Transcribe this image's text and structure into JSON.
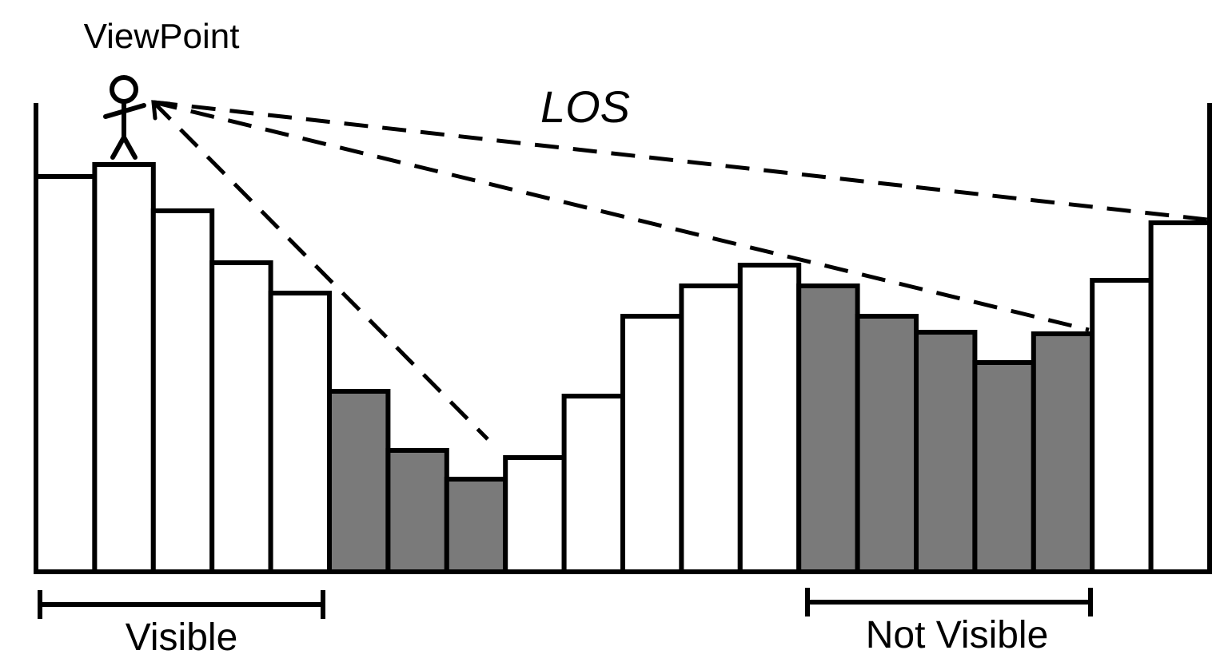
{
  "labels": {
    "viewpoint": "ViewPoint",
    "los": "LOS",
    "visible": "Visible",
    "not_visible": "Not Visible"
  },
  "terrain": {
    "column_count": 20,
    "heights": [
      495,
      510,
      452,
      387,
      349,
      226,
      152,
      116,
      143,
      220,
      320,
      358,
      384,
      358,
      320,
      300,
      262,
      298,
      365,
      437
    ],
    "visible": [
      true,
      true,
      true,
      true,
      true,
      false,
      false,
      false,
      true,
      true,
      true,
      true,
      true,
      false,
      false,
      false,
      false,
      false,
      true,
      true
    ],
    "viewpoint_column": 2
  },
  "colors": {
    "visible_fill": "#ffffff",
    "hidden_fill": "#7a7a7a",
    "stroke": "#000000",
    "background": "#ffffff"
  },
  "icons": [
    "person-icon"
  ]
}
